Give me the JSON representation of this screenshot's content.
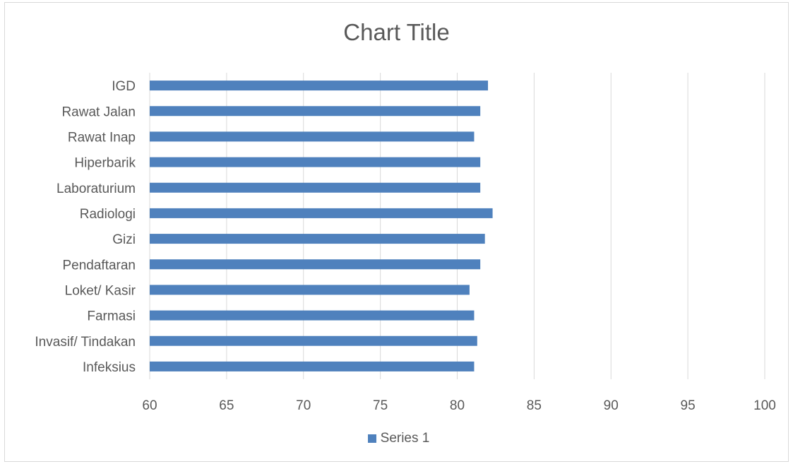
{
  "colors": {
    "bar": "#4f81bd",
    "grid": "#d9d9d9",
    "text": "#595959"
  },
  "chart_data": {
    "type": "bar",
    "orientation": "horizontal",
    "title": "Chart Title",
    "xlabel": "",
    "ylabel": "",
    "categories": [
      "IGD",
      "Rawat Jalan",
      "Rawat Inap",
      "Hiperbarik",
      "Laboraturium",
      "Radiologi",
      "Gizi",
      "Pendaftaran",
      "Loket/ Kasir",
      "Farmasi",
      "Invasif/ Tindakan",
      "Infeksius"
    ],
    "series": [
      {
        "name": "Series 1",
        "values": [
          82.0,
          81.5,
          81.1,
          81.5,
          81.5,
          82.3,
          81.8,
          81.5,
          80.8,
          81.1,
          81.3,
          81.1
        ]
      }
    ],
    "xlim": [
      60,
      100
    ],
    "xticks": [
      60,
      65,
      70,
      75,
      80,
      85,
      90,
      95,
      100
    ],
    "grid": true,
    "legend": "bottom"
  }
}
